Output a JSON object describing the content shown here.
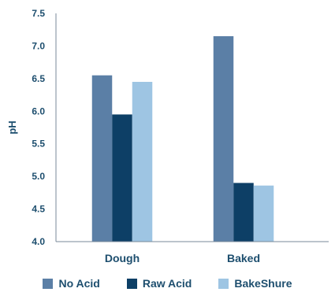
{
  "chart_data": {
    "type": "bar",
    "categories": [
      "Dough",
      "Baked"
    ],
    "ylabel": "pH",
    "ylim": [
      4.0,
      7.5
    ],
    "yticks": [
      "4.0",
      "4.5",
      "5.0",
      "5.5",
      "6.0",
      "6.5",
      "7.0",
      "7.5"
    ],
    "series": [
      {
        "name": "No Acid",
        "values": [
          6.55,
          7.15
        ],
        "color": "#5b7fa6"
      },
      {
        "name": "Raw Acid",
        "values": [
          5.95,
          4.9
        ],
        "color": "#0d3f66"
      },
      {
        "name": "BakeShure",
        "values": [
          6.45,
          4.86
        ],
        "color": "#9ec5e3"
      }
    ],
    "legend": "bottom",
    "grid": false
  }
}
